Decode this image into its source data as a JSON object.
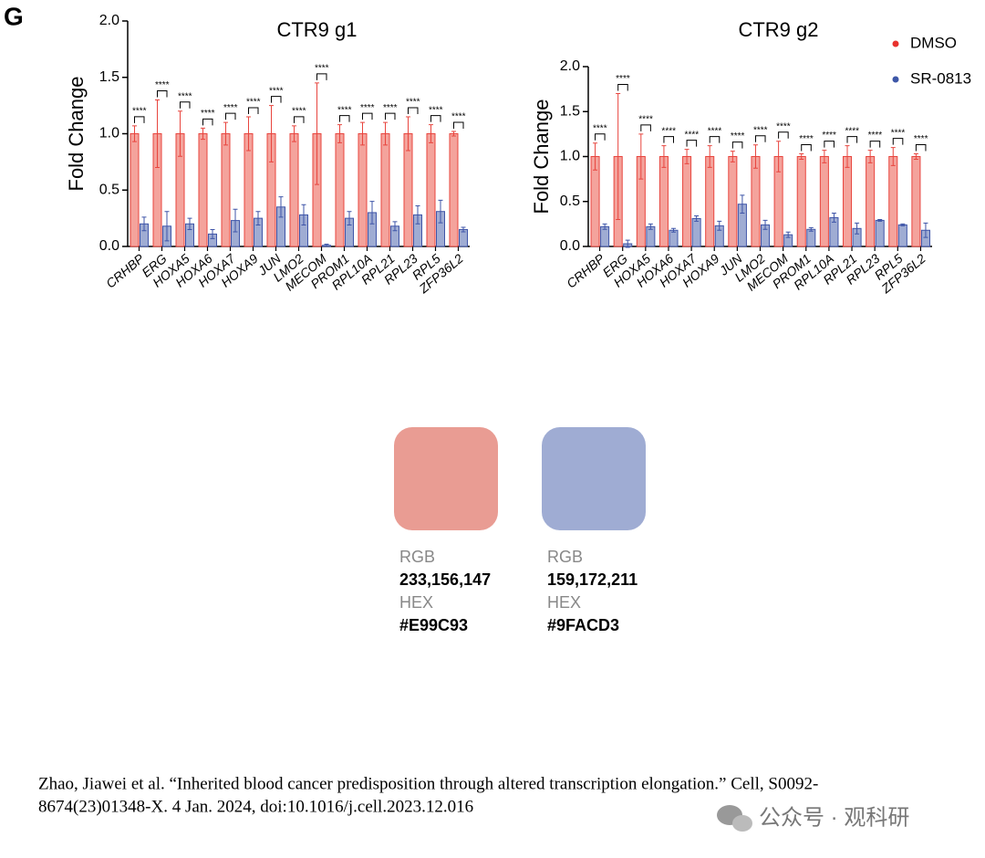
{
  "panel_label": "G",
  "chart_data": [
    {
      "type": "bar",
      "title": "CTR9 g1",
      "y_label": "Fold Change",
      "categories": [
        "CRHBP",
        "ERG",
        "HOXA5",
        "HOXA6",
        "HOXA7",
        "HOXA9",
        "JUN",
        "LMO2",
        "MECOM",
        "PROM1",
        "RPL10A",
        "RPL21",
        "RPL23",
        "RPL5",
        "ZFP36L2"
      ],
      "series": [
        {
          "color": "#F4A39C",
          "edge": "#E8453E",
          "values": [
            1,
            1,
            1,
            1,
            1,
            1,
            1,
            1,
            1,
            1,
            1,
            1,
            1,
            1,
            1
          ],
          "errors": [
            0.07,
            0.3,
            0.2,
            0.05,
            0.1,
            0.15,
            0.25,
            0.07,
            0.45,
            0.08,
            0.1,
            0.1,
            0.15,
            0.08,
            0.02
          ]
        },
        {
          "color": "#9FACD3",
          "edge": "#3F55A8",
          "values": [
            0.2,
            0.18,
            0.2,
            0.11,
            0.23,
            0.25,
            0.35,
            0.28,
            0.01,
            0.25,
            0.3,
            0.18,
            0.28,
            0.31,
            0.15
          ],
          "errors": [
            0.06,
            0.13,
            0.05,
            0.04,
            0.1,
            0.06,
            0.09,
            0.09,
            0.01,
            0.06,
            0.1,
            0.04,
            0.08,
            0.1,
            0.02
          ]
        }
      ],
      "significance": [
        "****",
        "****",
        "****",
        "****",
        "****",
        "****",
        "****",
        "****",
        "****",
        "****",
        "****",
        "****",
        "****",
        "****",
        "****"
      ],
      "ylim": [
        0,
        2
      ],
      "yticks": [
        {
          "value": 0,
          "label": "0.0"
        },
        0.5,
        {
          "value": 1,
          "label": "1.0"
        },
        1.5,
        {
          "value": 2,
          "label": "2.0"
        }
      ]
    },
    {
      "type": "bar",
      "title": "CTR9 g2",
      "y_label": "Fold Change",
      "categories": [
        "CRHBP",
        "ERG",
        "HOXA5",
        "HOXA6",
        "HOXA7",
        "HOXA9",
        "JUN",
        "LMO2",
        "MECOM",
        "PROM1",
        "RPL10A",
        "RPL21",
        "RPL23",
        "RPL5",
        "ZFP36L2"
      ],
      "series": [
        {
          "name": "DMSO",
          "color": "#F4A39C",
          "edge": "#E8453E",
          "dot": "#E8322E",
          "values": [
            1,
            1,
            1,
            1,
            1,
            1,
            1,
            1,
            1,
            1,
            1,
            1,
            1,
            1,
            1
          ],
          "errors": [
            0.15,
            0.7,
            0.25,
            0.12,
            0.08,
            0.12,
            0.06,
            0.13,
            0.17,
            0.03,
            0.07,
            0.12,
            0.07,
            0.1,
            0.03
          ]
        },
        {
          "name": "SR-0813",
          "color": "#9FACD3",
          "edge": "#3F55A8",
          "dot": "#3E57A8",
          "values": [
            0.22,
            0.03,
            0.22,
            0.18,
            0.31,
            0.23,
            0.47,
            0.24,
            0.13,
            0.19,
            0.32,
            0.2,
            0.29,
            0.24,
            0.18
          ],
          "errors": [
            0.03,
            0.04,
            0.03,
            0.02,
            0.03,
            0.05,
            0.1,
            0.05,
            0.03,
            0.02,
            0.05,
            0.06,
            0.01,
            0.01,
            0.08
          ]
        }
      ],
      "significance": [
        "****",
        "****",
        "****",
        "****",
        "****",
        "****",
        "****",
        "****",
        "****",
        "****",
        "****",
        "****",
        "****",
        "****",
        "****"
      ],
      "ylim": [
        0,
        2
      ],
      "yticks": [
        {
          "value": 0,
          "label": "0.0"
        },
        0.5,
        {
          "value": 1,
          "label": "1.0"
        },
        1.5,
        {
          "value": 2,
          "label": "2.0"
        }
      ],
      "legend": "top-right"
    }
  ],
  "swatches": [
    {
      "rgb_label": "RGB",
      "rgb": "233,156,147",
      "hex_label": "HEX",
      "hex": "#E99C93"
    },
    {
      "rgb_label": "RGB",
      "rgb": "159,172,211",
      "hex_label": "HEX",
      "hex": "#9FACD3"
    }
  ],
  "citation": [
    "Zhao, Jiawei et al. “Inherited blood cancer predisposition through altered transcription elongation.” Cell, S0092-",
    "8674(23)01348-X. 4 Jan. 2024, doi:10.1016/j.cell.2023.12.016"
  ],
  "watermark": "公众号 · 观科研"
}
